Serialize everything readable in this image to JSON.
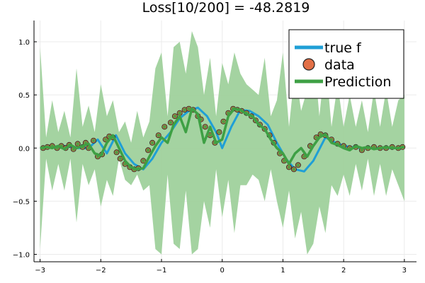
{
  "chart_data": {
    "type": "line",
    "title": "Loss[10/200] = -48.2819",
    "xlabel": "",
    "ylabel": "",
    "xlim": [
      -3.1,
      3.2
    ],
    "ylim": [
      -1.07,
      1.2
    ],
    "xticks": [
      -3,
      -2,
      -1,
      0,
      1,
      2,
      3
    ],
    "xtick_labels": [
      "−3",
      "−2",
      "−1",
      "0",
      "1",
      "2",
      "3"
    ],
    "yticks": [
      -1.0,
      -0.5,
      0.0,
      0.5,
      1.0
    ],
    "ytick_labels": [
      "−1.0",
      "−0.5",
      "0.0",
      "0.5",
      "1.0"
    ],
    "grid": true,
    "legend_position": "top-right",
    "colors": {
      "true_f": "#1f9fd6",
      "data": "#e26f46",
      "prediction": "#3ea044",
      "band": "#9fd19c"
    },
    "series": [
      {
        "name": "true f",
        "kind": "line",
        "x": [
          -3.0,
          -2.8,
          -2.6,
          -2.4,
          -2.2,
          -2.05,
          -1.9,
          -1.75,
          -1.6,
          -1.45,
          -1.3,
          -1.15,
          -1.0,
          -0.85,
          -0.7,
          -0.55,
          -0.4,
          -0.25,
          -0.1,
          0.0,
          0.15,
          0.3,
          0.45,
          0.6,
          0.75,
          0.9,
          1.05,
          1.2,
          1.35,
          1.5,
          1.7,
          1.9,
          2.1,
          2.3,
          2.5,
          2.7,
          2.9,
          3.0
        ],
        "y": [
          0.0,
          0.01,
          0.02,
          0.0,
          0.0,
          0.08,
          -0.05,
          0.12,
          -0.05,
          -0.15,
          -0.2,
          -0.1,
          0.05,
          0.15,
          0.28,
          0.35,
          0.38,
          0.3,
          0.15,
          0.0,
          0.2,
          0.36,
          0.35,
          0.3,
          0.22,
          0.05,
          -0.1,
          -0.2,
          -0.22,
          -0.12,
          0.1,
          0.04,
          0.01,
          0.0,
          0.0,
          0.0,
          0.0,
          0.0
        ]
      },
      {
        "name": "data",
        "kind": "scatter",
        "x": [
          -2.95,
          -2.88,
          -2.8,
          -2.72,
          -2.65,
          -2.58,
          -2.52,
          -2.45,
          -2.38,
          -2.3,
          -2.25,
          -2.2,
          -2.12,
          -2.05,
          -1.98,
          -1.92,
          -1.86,
          -1.8,
          -1.74,
          -1.68,
          -1.6,
          -1.52,
          -1.45,
          -1.38,
          -1.3,
          -1.22,
          -1.15,
          -1.05,
          -0.95,
          -0.85,
          -0.78,
          -0.7,
          -0.62,
          -0.55,
          -0.48,
          -0.4,
          -0.35,
          -0.28,
          -0.2,
          -0.12,
          -0.05,
          0.02,
          0.1,
          0.18,
          0.25,
          0.32,
          0.4,
          0.48,
          0.55,
          0.62,
          0.7,
          0.78,
          0.85,
          0.95,
          1.02,
          1.1,
          1.18,
          1.25,
          1.35,
          1.45,
          1.55,
          1.62,
          1.7,
          1.8,
          1.9,
          2.0,
          2.1,
          2.2,
          2.3,
          2.4,
          2.5,
          2.6,
          2.7,
          2.8,
          2.9,
          2.97
        ],
        "y": [
          0.0,
          0.01,
          0.02,
          0.0,
          0.02,
          0.0,
          0.03,
          -0.01,
          0.04,
          0.01,
          0.05,
          0.0,
          0.07,
          -0.08,
          -0.06,
          0.08,
          0.11,
          0.1,
          -0.04,
          -0.1,
          -0.15,
          -0.18,
          -0.2,
          -0.19,
          -0.12,
          -0.02,
          0.05,
          0.12,
          0.2,
          0.24,
          0.3,
          0.33,
          0.36,
          0.37,
          0.36,
          0.3,
          0.27,
          0.2,
          0.12,
          0.05,
          0.15,
          0.25,
          0.33,
          0.37,
          0.36,
          0.35,
          0.33,
          0.3,
          0.26,
          0.22,
          0.18,
          0.12,
          0.05,
          -0.05,
          -0.12,
          -0.18,
          -0.2,
          -0.16,
          -0.08,
          0.02,
          0.1,
          0.13,
          0.12,
          0.08,
          0.04,
          0.02,
          0.0,
          0.01,
          -0.02,
          0.0,
          0.01,
          0.0,
          0.0,
          0.01,
          0.0,
          0.01
        ]
      },
      {
        "name": "Prediction",
        "kind": "line",
        "x": [
          -3.0,
          -2.9,
          -2.8,
          -2.7,
          -2.6,
          -2.5,
          -2.4,
          -2.3,
          -2.2,
          -2.1,
          -2.0,
          -1.9,
          -1.8,
          -1.7,
          -1.6,
          -1.5,
          -1.4,
          -1.3,
          -1.2,
          -1.1,
          -1.0,
          -0.9,
          -0.8,
          -0.7,
          -0.6,
          -0.5,
          -0.4,
          -0.3,
          -0.2,
          -0.1,
          0.0,
          0.1,
          0.2,
          0.3,
          0.4,
          0.5,
          0.6,
          0.7,
          0.8,
          0.9,
          1.0,
          1.1,
          1.2,
          1.3,
          1.4,
          1.5,
          1.6,
          1.7,
          1.8,
          1.9,
          2.0,
          2.1,
          2.2,
          2.3,
          2.4,
          2.5,
          2.6,
          2.7,
          2.8,
          2.9,
          3.0
        ],
        "y": [
          0.0,
          0.01,
          0.0,
          0.02,
          -0.01,
          0.03,
          0.0,
          0.02,
          0.04,
          -0.05,
          -0.07,
          0.05,
          0.12,
          0.0,
          -0.12,
          -0.18,
          -0.2,
          -0.19,
          -0.08,
          0.02,
          0.1,
          0.05,
          0.22,
          0.3,
          0.15,
          0.37,
          0.32,
          0.05,
          0.2,
          0.05,
          0.08,
          0.3,
          0.37,
          0.36,
          0.32,
          0.3,
          0.22,
          0.18,
          0.08,
          0.0,
          -0.05,
          -0.15,
          -0.05,
          0.0,
          -0.08,
          0.02,
          0.1,
          0.13,
          0.05,
          0.03,
          0.0,
          -0.02,
          0.02,
          0.0,
          0.01,
          -0.01,
          0.0,
          0.01,
          0.0,
          0.0,
          0.01
        ]
      }
    ],
    "uncertainty_band": {
      "x": [
        -3.0,
        -2.9,
        -2.8,
        -2.7,
        -2.6,
        -2.5,
        -2.4,
        -2.3,
        -2.2,
        -2.1,
        -2.0,
        -1.9,
        -1.8,
        -1.7,
        -1.6,
        -1.5,
        -1.4,
        -1.3,
        -1.2,
        -1.1,
        -1.0,
        -0.9,
        -0.8,
        -0.7,
        -0.6,
        -0.5,
        -0.4,
        -0.3,
        -0.2,
        -0.1,
        0.0,
        0.1,
        0.2,
        0.3,
        0.4,
        0.5,
        0.6,
        0.7,
        0.8,
        0.9,
        1.0,
        1.1,
        1.2,
        1.3,
        1.4,
        1.5,
        1.6,
        1.7,
        1.8,
        1.9,
        2.0,
        2.1,
        2.2,
        2.3,
        2.4,
        2.5,
        2.6,
        2.7,
        2.8,
        2.9,
        3.0
      ],
      "upper": [
        0.95,
        0.1,
        0.45,
        0.15,
        0.35,
        0.1,
        0.75,
        0.2,
        0.4,
        0.15,
        0.6,
        0.3,
        0.45,
        0.15,
        0.25,
        0.05,
        0.35,
        0.1,
        0.25,
        0.75,
        0.9,
        0.3,
        0.95,
        1.0,
        0.7,
        1.1,
        0.95,
        0.5,
        0.85,
        0.3,
        0.8,
        0.6,
        0.9,
        0.7,
        0.6,
        0.55,
        0.5,
        0.85,
        0.3,
        0.45,
        0.9,
        0.2,
        0.75,
        0.35,
        0.55,
        0.95,
        0.3,
        0.85,
        0.2,
        0.6,
        0.2,
        0.5,
        0.2,
        0.45,
        0.15,
        0.55,
        0.2,
        0.55,
        0.2,
        0.45,
        0.5
      ],
      "lower": [
        -0.95,
        -0.1,
        -0.4,
        -0.15,
        -0.4,
        -0.1,
        -0.7,
        -0.15,
        -0.35,
        -0.2,
        -0.55,
        -0.3,
        -0.45,
        -0.1,
        -0.3,
        -0.35,
        -0.25,
        -0.4,
        -0.35,
        -0.95,
        -1.0,
        -0.25,
        -0.9,
        -0.95,
        -0.4,
        -1.0,
        -0.95,
        -0.5,
        -0.75,
        -0.2,
        -0.65,
        -0.3,
        -0.8,
        -0.35,
        -0.35,
        -0.25,
        -0.3,
        -0.5,
        -0.2,
        -0.5,
        -0.75,
        -0.4,
        -0.85,
        -0.6,
        -1.0,
        -0.9,
        -0.55,
        -0.8,
        -0.35,
        -0.45,
        -0.25,
        -0.45,
        -0.15,
        -0.4,
        -0.1,
        -0.45,
        -0.15,
        -0.45,
        -0.2,
        -0.35,
        -0.5
      ]
    }
  }
}
